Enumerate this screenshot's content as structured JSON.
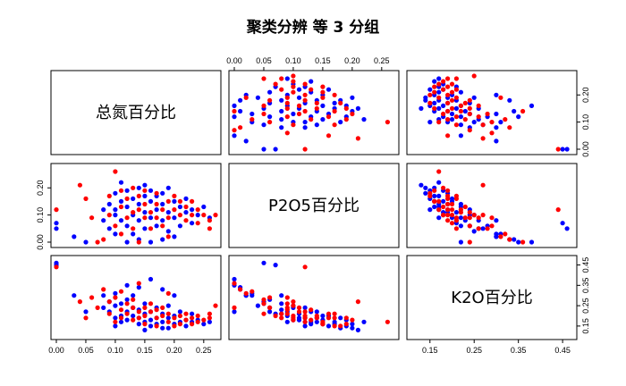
{
  "chart_data": {
    "type": "scatter",
    "title": "聚类分辨 等 3 分组",
    "variables": [
      {
        "name": "总氮百分比",
        "range": [
          0.0,
          0.27
        ],
        "ticks": [
          "0.00",
          "0.05",
          "0.10",
          "0.15",
          "0.20",
          "0.25"
        ],
        "tick_values": [
          0.0,
          0.05,
          0.1,
          0.15,
          0.2,
          0.25
        ]
      },
      {
        "name": "P2O5百分比",
        "range": [
          0.0,
          0.27
        ],
        "ticks": [
          "0.00",
          "0.10",
          "0.20"
        ],
        "tick_values": [
          0.0,
          0.1,
          0.2
        ]
      },
      {
        "name": "K2O百分比",
        "range": [
          0.11,
          0.47
        ],
        "ticks": [
          "0.15",
          "0.25",
          "0.35",
          "0.45"
        ],
        "tick_values": [
          0.15,
          0.25,
          0.35,
          0.45
        ]
      }
    ],
    "top_axis_ticks": [
      "0.00",
      "0.05",
      "0.10",
      "0.15",
      "0.20",
      "0.25"
    ],
    "top_axis_values": [
      0.0,
      0.05,
      0.1,
      0.15,
      0.2,
      0.25
    ],
    "series": [
      {
        "color": "#0000ff",
        "points": [
          [
            0.0,
            0.07,
            0.45
          ],
          [
            0.0,
            0.05,
            0.46
          ],
          [
            0.03,
            0.02,
            0.3
          ],
          [
            0.05,
            0.0,
            0.22
          ],
          [
            0.08,
            0.12,
            0.24
          ],
          [
            0.08,
            0.08,
            0.3
          ],
          [
            0.09,
            0.14,
            0.22
          ],
          [
            0.09,
            0.05,
            0.27
          ],
          [
            0.1,
            0.18,
            0.19
          ],
          [
            0.1,
            0.1,
            0.25
          ],
          [
            0.1,
            0.03,
            0.31
          ],
          [
            0.11,
            0.15,
            0.2
          ],
          [
            0.11,
            0.08,
            0.26
          ],
          [
            0.11,
            0.22,
            0.17
          ],
          [
            0.12,
            0.13,
            0.22
          ],
          [
            0.12,
            0.06,
            0.28
          ],
          [
            0.12,
            0.19,
            0.18
          ],
          [
            0.13,
            0.16,
            0.2
          ],
          [
            0.13,
            0.1,
            0.24
          ],
          [
            0.13,
            0.03,
            0.3
          ],
          [
            0.14,
            0.14,
            0.19
          ],
          [
            0.14,
            0.08,
            0.23
          ],
          [
            0.14,
            0.2,
            0.16
          ],
          [
            0.15,
            0.17,
            0.17
          ],
          [
            0.15,
            0.11,
            0.21
          ],
          [
            0.15,
            0.05,
            0.26
          ],
          [
            0.16,
            0.15,
            0.18
          ],
          [
            0.16,
            0.09,
            0.22
          ],
          [
            0.16,
            0.19,
            0.15
          ],
          [
            0.17,
            0.12,
            0.19
          ],
          [
            0.17,
            0.06,
            0.24
          ],
          [
            0.17,
            0.17,
            0.16
          ],
          [
            0.18,
            0.14,
            0.17
          ],
          [
            0.18,
            0.08,
            0.21
          ],
          [
            0.18,
            0.18,
            0.14
          ],
          [
            0.19,
            0.11,
            0.19
          ],
          [
            0.19,
            0.04,
            0.25
          ],
          [
            0.2,
            0.15,
            0.16
          ],
          [
            0.2,
            0.09,
            0.2
          ],
          [
            0.21,
            0.13,
            0.17
          ],
          [
            0.21,
            0.06,
            0.22
          ],
          [
            0.22,
            0.11,
            0.18
          ],
          [
            0.22,
            0.16,
            0.15
          ],
          [
            0.23,
            0.12,
            0.17
          ],
          [
            0.23,
            0.07,
            0.21
          ],
          [
            0.24,
            0.1,
            0.18
          ],
          [
            0.25,
            0.13,
            0.16
          ],
          [
            0.26,
            0.09,
            0.17
          ],
          [
            0.14,
            0.01,
            0.34
          ],
          [
            0.2,
            0.02,
            0.3
          ],
          [
            0.16,
            0.0,
            0.38
          ],
          [
            0.12,
            0.0,
            0.35
          ],
          [
            0.18,
            0.01,
            0.33
          ],
          [
            0.1,
            0.12,
            0.15
          ],
          [
            0.15,
            0.21,
            0.13
          ],
          [
            0.19,
            0.2,
            0.14
          ]
        ]
      },
      {
        "color": "#ff0000",
        "points": [
          [
            0.0,
            0.12,
            0.44
          ],
          [
            0.04,
            0.21,
            0.27
          ],
          [
            0.05,
            0.16,
            0.19
          ],
          [
            0.06,
            0.09,
            0.29
          ],
          [
            0.07,
            0.0,
            0.24
          ],
          [
            0.09,
            0.1,
            0.27
          ],
          [
            0.09,
            0.17,
            0.21
          ],
          [
            0.1,
            0.26,
            0.17
          ],
          [
            0.1,
            0.06,
            0.29
          ],
          [
            0.11,
            0.13,
            0.23
          ],
          [
            0.11,
            0.19,
            0.19
          ],
          [
            0.12,
            0.09,
            0.26
          ],
          [
            0.12,
            0.16,
            0.21
          ],
          [
            0.13,
            0.11,
            0.24
          ],
          [
            0.13,
            0.2,
            0.18
          ],
          [
            0.13,
            0.05,
            0.28
          ],
          [
            0.14,
            0.12,
            0.22
          ],
          [
            0.14,
            0.17,
            0.19
          ],
          [
            0.15,
            0.09,
            0.24
          ],
          [
            0.15,
            0.14,
            0.2
          ],
          [
            0.15,
            0.19,
            0.16
          ],
          [
            0.16,
            0.11,
            0.22
          ],
          [
            0.16,
            0.05,
            0.26
          ],
          [
            0.17,
            0.14,
            0.19
          ],
          [
            0.17,
            0.09,
            0.23
          ],
          [
            0.17,
            0.18,
            0.15
          ],
          [
            0.18,
            0.12,
            0.2
          ],
          [
            0.18,
            0.06,
            0.24
          ],
          [
            0.19,
            0.15,
            0.17
          ],
          [
            0.19,
            0.09,
            0.21
          ],
          [
            0.2,
            0.12,
            0.19
          ],
          [
            0.2,
            0.17,
            0.15
          ],
          [
            0.21,
            0.1,
            0.2
          ],
          [
            0.21,
            0.15,
            0.16
          ],
          [
            0.22,
            0.08,
            0.21
          ],
          [
            0.22,
            0.13,
            0.18
          ],
          [
            0.23,
            0.1,
            0.19
          ],
          [
            0.23,
            0.15,
            0.16
          ],
          [
            0.24,
            0.12,
            0.17
          ],
          [
            0.24,
            0.07,
            0.2
          ],
          [
            0.25,
            0.1,
            0.18
          ],
          [
            0.26,
            0.08,
            0.19
          ],
          [
            0.26,
            0.05,
            0.21
          ],
          [
            0.27,
            0.1,
            0.25
          ],
          [
            0.08,
            0.01,
            0.33
          ],
          [
            0.14,
            0.0,
            0.36
          ],
          [
            0.19,
            0.02,
            0.31
          ],
          [
            0.11,
            0.03,
            0.32
          ]
        ]
      }
    ],
    "grid": false,
    "legend": "none"
  }
}
